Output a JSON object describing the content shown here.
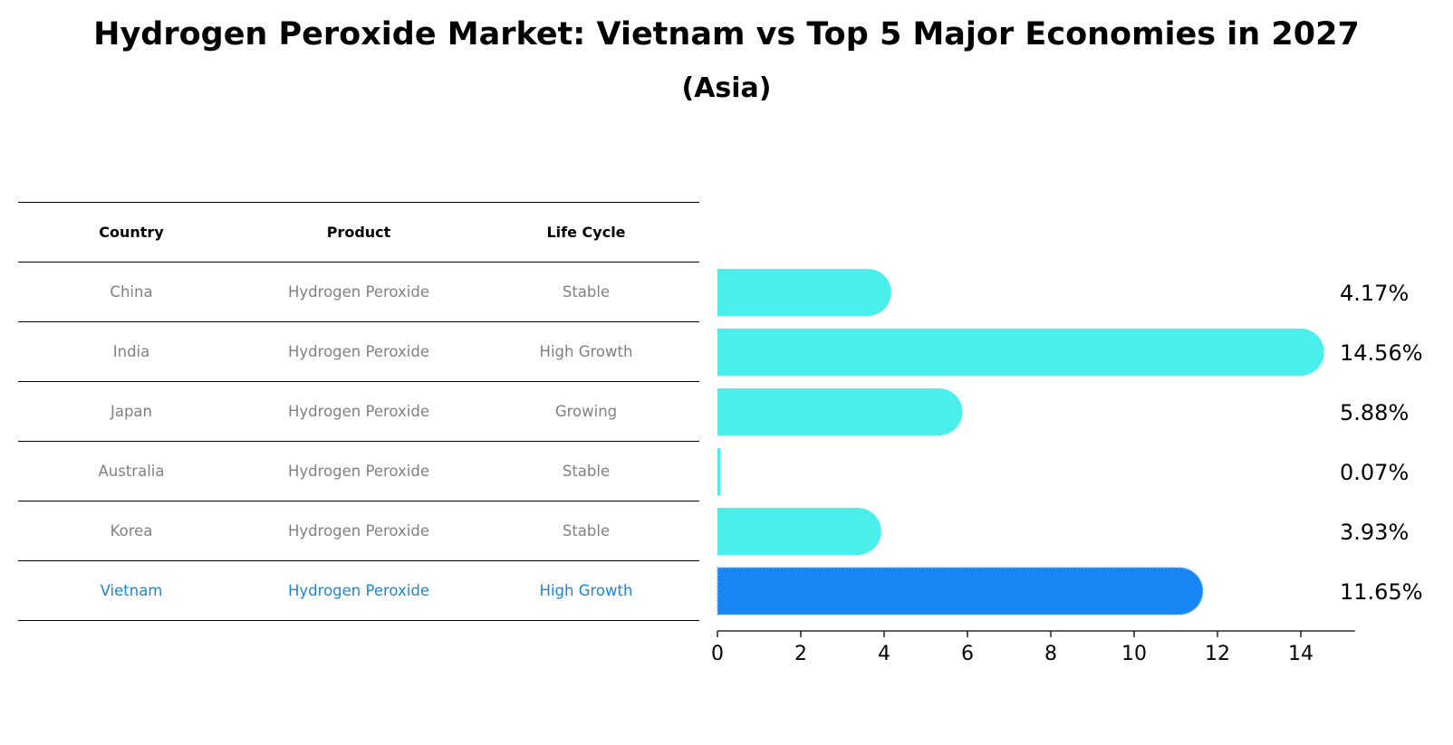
{
  "title": "Hydrogen Peroxide Market: Vietnam vs Top 5 Major Economies in 2027",
  "subtitle": "(Asia)",
  "table": {
    "headers": [
      "Country",
      "Product",
      "Life Cycle"
    ],
    "rows": [
      {
        "country": "China",
        "product": "Hydrogen Peroxide",
        "life_cycle": "Stable"
      },
      {
        "country": "India",
        "product": "Hydrogen Peroxide",
        "life_cycle": "High Growth"
      },
      {
        "country": "Japan",
        "product": "Hydrogen Peroxide",
        "life_cycle": "Growing"
      },
      {
        "country": "Australia",
        "product": "Hydrogen Peroxide",
        "life_cycle": "Stable"
      },
      {
        "country": "Korea",
        "product": "Hydrogen Peroxide",
        "life_cycle": "Stable"
      },
      {
        "country": "Vietnam",
        "product": "Hydrogen Peroxide",
        "life_cycle": "High Growth"
      }
    ],
    "highlight_color": "#1a86d6",
    "text_color": "#808080"
  },
  "chart_data": {
    "type": "bar",
    "orientation": "horizontal",
    "title": "Hydrogen Peroxide Market: Vietnam vs Top 5 Major Economies in 2027",
    "subtitle": "(Asia)",
    "categories": [
      "China",
      "India",
      "Japan",
      "Australia",
      "Korea",
      "Vietnam"
    ],
    "values": [
      4.17,
      14.56,
      5.88,
      0.07,
      3.93,
      11.65
    ],
    "value_labels": [
      "4.17%",
      "14.56%",
      "5.88%",
      "0.07%",
      "3.93%",
      "11.65%"
    ],
    "highlight_category": "Vietnam",
    "colors": {
      "default": "#4aeeea",
      "highlight": "#1886f4"
    },
    "xlim": [
      0,
      15.3
    ],
    "xticks": [
      0,
      2,
      4,
      6,
      8,
      10,
      12,
      14
    ],
    "xlabel": "",
    "ylabel": "",
    "grid": false,
    "legend": "none"
  }
}
